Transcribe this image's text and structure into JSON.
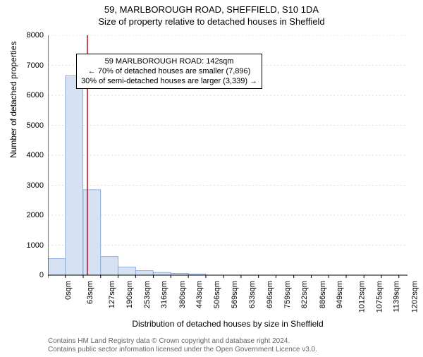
{
  "title_main": "59, MARLBOROUGH ROAD, SHEFFIELD, S10 1DA",
  "title_sub": "Size of property relative to detached houses in Sheffield",
  "y_label": "Number of detached properties",
  "x_label": "Distribution of detached houses by size in Sheffield",
  "chart": {
    "type": "histogram",
    "background_color": "#ffffff",
    "grid_color": "#d0d0d0",
    "axis_color": "#000000",
    "bar_fill": "#d6e2f3",
    "bar_stroke": "#7aa0d4",
    "marker_line_color": "#cc0000",
    "marker_x": 142,
    "ylim": [
      0,
      8000
    ],
    "ytick_step": 1000,
    "yticks": [
      0,
      1000,
      2000,
      3000,
      4000,
      5000,
      6000,
      7000,
      8000
    ],
    "xlim": [
      0,
      1296
    ],
    "xticks": [
      0,
      63,
      127,
      190,
      253,
      316,
      380,
      443,
      506,
      569,
      633,
      696,
      759,
      822,
      886,
      949,
      1012,
      1075,
      1139,
      1202,
      1265
    ],
    "xtick_labels": [
      "0sqm",
      "63sqm",
      "127sqm",
      "190sqm",
      "253sqm",
      "316sqm",
      "380sqm",
      "443sqm",
      "506sqm",
      "569sqm",
      "633sqm",
      "696sqm",
      "759sqm",
      "822sqm",
      "886sqm",
      "949sqm",
      "1012sqm",
      "1075sqm",
      "1139sqm",
      "1202sqm",
      "1265sqm"
    ],
    "bin_width": 63,
    "bars": [
      {
        "x": 0,
        "value": 550
      },
      {
        "x": 63,
        "value": 6650
      },
      {
        "x": 127,
        "value": 2850
      },
      {
        "x": 190,
        "value": 620
      },
      {
        "x": 253,
        "value": 270
      },
      {
        "x": 316,
        "value": 150
      },
      {
        "x": 380,
        "value": 90
      },
      {
        "x": 443,
        "value": 60
      },
      {
        "x": 506,
        "value": 40
      },
      {
        "x": 569,
        "value": 0
      },
      {
        "x": 633,
        "value": 0
      },
      {
        "x": 696,
        "value": 0
      },
      {
        "x": 759,
        "value": 0
      },
      {
        "x": 822,
        "value": 0
      },
      {
        "x": 886,
        "value": 0
      },
      {
        "x": 949,
        "value": 0
      },
      {
        "x": 1012,
        "value": 0
      },
      {
        "x": 1075,
        "value": 0
      },
      {
        "x": 1139,
        "value": 0
      },
      {
        "x": 1202,
        "value": 0
      }
    ]
  },
  "annotation": {
    "line1": "59 MARLBOROUGH ROAD: 142sqm",
    "line2": "← 70% of detached houses are smaller (7,896)",
    "line3": "30% of semi-detached houses are larger (3,339) →",
    "border_color": "#000000",
    "background": "#ffffff",
    "fontsize": 11
  },
  "footer": {
    "line1": "Contains HM Land Registry data © Crown copyright and database right 2024.",
    "line2": "Contains public sector information licensed under the Open Government Licence v3.0."
  }
}
